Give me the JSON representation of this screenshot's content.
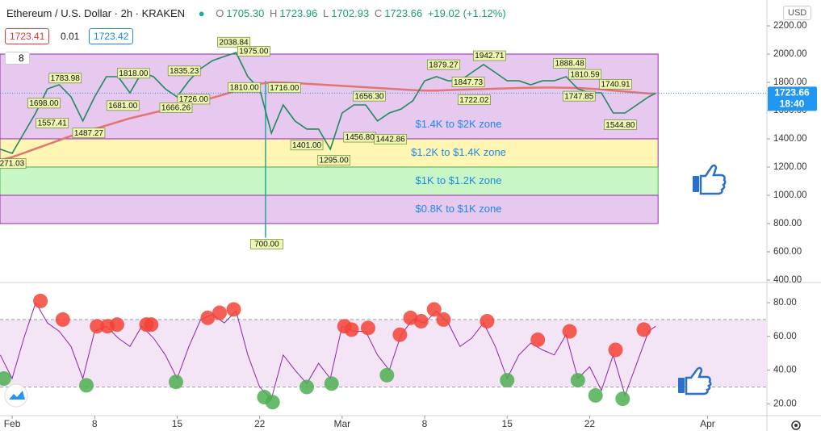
{
  "header": {
    "symbol": "Ethereum / U.S. Dollar · 2h · KRAKEN",
    "ohlc": [
      {
        "key": "O",
        "value": "1705.30"
      },
      {
        "key": "H",
        "value": "1723.96"
      },
      {
        "key": "L",
        "value": "1702.93"
      },
      {
        "key": "C",
        "value": "1723.66"
      }
    ],
    "change": "+19.02 (+1.12%)",
    "sell": "1723.41",
    "spread": "0.01",
    "buy": "1723.42",
    "badge": "8",
    "currency": "USD"
  },
  "chart_data": [
    {
      "type": "line",
      "color": "#1f8a5c",
      "x": [
        -1,
        0,
        1,
        2,
        3,
        4,
        5,
        6,
        7,
        8,
        9,
        10,
        11,
        12,
        13,
        14,
        15,
        16,
        17,
        18,
        19,
        20,
        21,
        22,
        23,
        24,
        25,
        26,
        27,
        28,
        29,
        30,
        31,
        32,
        33,
        34,
        35,
        36,
        37,
        38,
        39,
        40,
        41,
        42,
        43,
        44,
        45,
        46,
        47,
        48,
        49,
        50,
        51,
        52,
        53,
        54,
        54.6
      ],
      "values": [
        1326,
        1297,
        1440,
        1583,
        1754,
        1783,
        1697,
        1526,
        1697,
        1840,
        1840,
        1726,
        1869,
        1840,
        1754,
        1697,
        1811,
        1897,
        1954,
        1983,
        2011,
        1840,
        1754,
        1440,
        1640,
        1526,
        1469,
        1469,
        1326,
        1583,
        1640,
        1640,
        1526,
        1583,
        1611,
        1669,
        1811,
        1840,
        1811,
        1811,
        1869,
        1926,
        1869,
        1811,
        1811,
        1783,
        1811,
        1811,
        1840,
        1754,
        1726,
        1726,
        1583,
        1583,
        1640,
        1697,
        1723.66
      ],
      "ma": {
        "color": "#e57373",
        "values": [
          1250,
          1270,
          1300,
          1330,
          1360,
          1390,
          1420,
          1445,
          1470,
          1495,
          1520,
          1545,
          1565,
          1585,
          1605,
          1625,
          1645,
          1665,
          1690,
          1715,
          1740,
          1765,
          1790,
          1800,
          1798,
          1795,
          1790,
          1785,
          1780,
          1775,
          1770,
          1765,
          1760,
          1755,
          1750,
          1745,
          1742,
          1742,
          1745,
          1748,
          1750,
          1752,
          1755,
          1757,
          1760,
          1762,
          1763,
          1763,
          1762,
          1760,
          1755,
          1750,
          1742,
          1735,
          1728,
          1722,
          1720
        ]
      },
      "xlim": [
        -1.03,
        64.04
      ],
      "ylim": [
        394,
        2383
      ],
      "yticks": [
        {
          "value": 400,
          "label": "400.00"
        },
        {
          "value": 600,
          "label": "600.00"
        },
        {
          "value": 800,
          "label": "800.00"
        },
        {
          "value": 1000,
          "label": "1000.00"
        },
        {
          "value": 1200,
          "label": "1200.00"
        },
        {
          "value": 1400,
          "label": "1400.00"
        },
        {
          "value": 1600,
          "label": "1600.00"
        },
        {
          "value": 1800,
          "label": "1800.00"
        },
        {
          "value": 2000,
          "label": "2000.00"
        },
        {
          "value": 2200,
          "label": "2200.00"
        }
      ],
      "zones": [
        {
          "low": 1400,
          "high": 2000,
          "label": "$1.4K to $2K zone",
          "color": "#e7c8ee",
          "border": "#9c27b0"
        },
        {
          "low": 1200,
          "high": 1400,
          "label": "$1.2K to $1.4K zone",
          "color": "#fff6b3",
          "border": "#9c27b0"
        },
        {
          "low": 1000,
          "high": 1200,
          "label": "$1K to $1.2K zone",
          "color": "#c8f7c5",
          "border": "#4caf50"
        },
        {
          "low": 800,
          "high": 1000,
          "label": "$0.8K to $1K zone",
          "color": "#e7c8ee",
          "border": "#9c27b0"
        }
      ],
      "wick": {
        "x": 21.5,
        "high": 1810,
        "low": 700,
        "color": "#26a69a"
      },
      "price_labels": [
        {
          "x": 18.8,
          "value": 2038.84,
          "label": "2038.84"
        },
        {
          "x": 20.5,
          "value": 1975,
          "label": "1975.00"
        },
        {
          "x": 4.5,
          "value": 1783.98,
          "label": "1783.98"
        },
        {
          "x": 2.7,
          "value": 1698,
          "label": "1698.00"
        },
        {
          "x": 3.4,
          "value": 1557.41,
          "label": "1557.41"
        },
        {
          "x": 6.5,
          "value": 1487.27,
          "label": "1487.27"
        },
        {
          "x": -0.2,
          "value": 1271.03,
          "label": "1271.03"
        },
        {
          "x": 9.4,
          "value": 1681,
          "label": "1681.00"
        },
        {
          "x": 10.3,
          "value": 1818,
          "label": "1818.00"
        },
        {
          "x": 14.6,
          "value": 1835.23,
          "label": "1835.23"
        },
        {
          "x": 15.4,
          "value": 1726,
          "label": "1726.00"
        },
        {
          "x": 13.9,
          "value": 1666.26,
          "label": "1666.26"
        },
        {
          "x": 19.7,
          "value": 1810,
          "label": "1810.00"
        },
        {
          "x": 23.1,
          "value": 1716,
          "label": "1716.00"
        },
        {
          "x": 25.0,
          "value": 1401,
          "label": "1401.00"
        },
        {
          "x": 27.3,
          "value": 1295,
          "label": "1295.00"
        },
        {
          "x": 29.5,
          "value": 1456.8,
          "label": "1456.80"
        },
        {
          "x": 32.1,
          "value": 1442.86,
          "label": "1442.86"
        },
        {
          "x": 30.3,
          "value": 1656.3,
          "label": "1656.30"
        },
        {
          "x": 36.6,
          "value": 1879.27,
          "label": "1879.27"
        },
        {
          "x": 38.7,
          "value": 1847.73,
          "label": "1847.73"
        },
        {
          "x": 40.5,
          "value": 1942.71,
          "label": "1942.71"
        },
        {
          "x": 39.2,
          "value": 1722.02,
          "label": "1722.02"
        },
        {
          "x": 47.3,
          "value": 1888.48,
          "label": "1888.48"
        },
        {
          "x": 48.6,
          "value": 1810.59,
          "label": "1810.59"
        },
        {
          "x": 48.1,
          "value": 1747.85,
          "label": "1747.85"
        },
        {
          "x": 51.2,
          "value": 1740.91,
          "label": "1740.91"
        },
        {
          "x": 51.6,
          "value": 1544.8,
          "label": "1544.80"
        },
        {
          "x": 21.6,
          "value": 700,
          "label": "700.00"
        }
      ],
      "last_price": {
        "value": 1723.66,
        "time": "18:40",
        "color": "#2196f3"
      }
    },
    {
      "type": "line",
      "color": "#8e24aa",
      "x": [
        -1,
        0,
        1,
        2,
        3,
        4,
        5,
        6,
        7,
        8,
        9,
        10,
        11,
        12,
        13,
        14,
        15,
        16,
        17,
        18,
        19,
        20,
        21,
        22,
        23,
        24,
        25,
        26,
        27,
        28,
        29,
        30,
        31,
        32,
        33,
        34,
        35,
        36,
        37,
        38,
        39,
        40,
        41,
        42,
        43,
        44,
        45,
        46,
        47,
        48,
        49,
        50,
        51,
        52,
        53,
        54,
        54.6
      ],
      "values": [
        49,
        35,
        59,
        80,
        68,
        63,
        54,
        35,
        63,
        66,
        59,
        54,
        66,
        59,
        49,
        35,
        54,
        70,
        73,
        68,
        75,
        49,
        30,
        23,
        49,
        40,
        32,
        44,
        35,
        66,
        63,
        63,
        49,
        40,
        61,
        70,
        68,
        75,
        68,
        54,
        59,
        68,
        54,
        35,
        49,
        56,
        52,
        49,
        61,
        35,
        42,
        28,
        49,
        25,
        44,
        63,
        66
      ],
      "xlim": [
        -1.03,
        64.04
      ],
      "ylim": [
        13,
        91
      ],
      "yticks": [
        {
          "value": 20,
          "label": "20.00"
        },
        {
          "value": 40,
          "label": "40.00"
        },
        {
          "value": 60,
          "label": "60.00"
        },
        {
          "value": 80,
          "label": "80.00"
        }
      ],
      "xticks": [
        {
          "value": 0,
          "label": "Feb"
        },
        {
          "value": 7,
          "label": "8"
        },
        {
          "value": 14,
          "label": "15"
        },
        {
          "value": 21,
          "label": "22"
        },
        {
          "value": 28,
          "label": "Mar"
        },
        {
          "value": 35,
          "label": "8"
        },
        {
          "value": 42,
          "label": "15"
        },
        {
          "value": 49,
          "label": "22"
        },
        {
          "value": 59,
          "label": "Apr"
        }
      ],
      "bands": [
        30,
        70
      ],
      "overbought": {
        "color": "#f44336",
        "x": [
          2.4,
          4.3,
          7.2,
          8.1,
          8.9,
          11.4,
          11.8,
          16.6,
          17.6,
          18.8,
          28.2,
          28.8,
          30.2,
          32.9,
          33.8,
          34.7,
          35.8,
          36.6,
          40.3,
          44.6,
          47.3,
          51.2,
          53.6
        ],
        "values": [
          81,
          70,
          66,
          66,
          67,
          67,
          67,
          71,
          74,
          76,
          66,
          64,
          65,
          61,
          71,
          69,
          76,
          70,
          69,
          58,
          63,
          52,
          64
        ]
      },
      "oversold": {
        "color": "#4caf50",
        "x": [
          -0.7,
          6.3,
          13.9,
          21.4,
          22.1,
          25,
          27.1,
          31.8,
          42,
          48,
          49.5,
          51.8
        ],
        "values": [
          35,
          31,
          33,
          24,
          21,
          30,
          32,
          37,
          34,
          34,
          25,
          23
        ]
      }
    }
  ]
}
